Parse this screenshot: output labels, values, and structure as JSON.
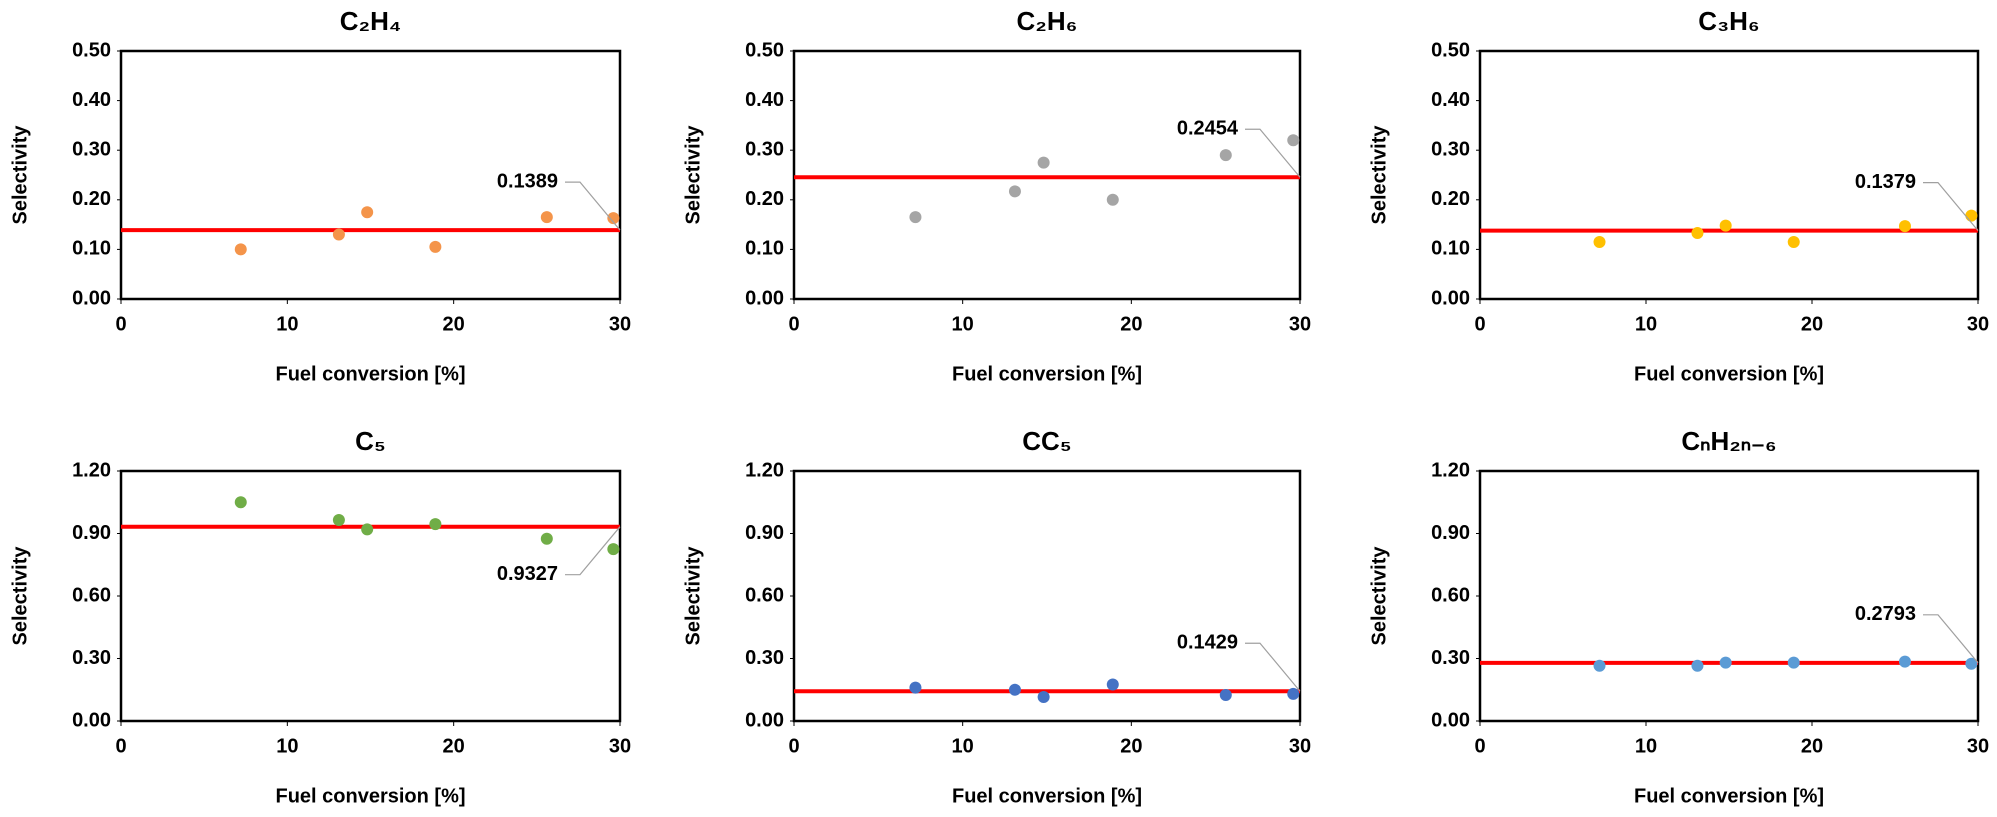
{
  "chart_data": [
    {
      "type": "scatter",
      "title": "C₂H₄",
      "xlabel": "Fuel conversion [%]",
      "ylabel": "Selectivity",
      "x": [
        7.2,
        13.1,
        14.8,
        18.9,
        25.6,
        29.6
      ],
      "values": [
        0.1,
        0.13,
        0.175,
        0.105,
        0.165,
        0.163
      ],
      "color": "#f4944a",
      "mean_line": 0.1389,
      "mean_line_color": "#ff0000",
      "xlim": [
        0,
        30
      ],
      "xticks": [
        0,
        10,
        20,
        30
      ],
      "ylim": [
        0,
        0.5
      ],
      "yticks": [
        {
          "value": 0,
          "label": "0.00"
        },
        {
          "value": 0.1,
          "label": "0.10"
        },
        {
          "value": 0.2,
          "label": "0.20"
        },
        {
          "value": 0.3,
          "label": "0.30"
        },
        {
          "value": 0.4,
          "label": "0.40"
        },
        {
          "value": 0.5,
          "label": "0.50"
        }
      ]
    },
    {
      "type": "scatter",
      "title": "C₂H₆",
      "xlabel": "Fuel conversion [%]",
      "ylabel": "Selectivity",
      "x": [
        7.2,
        13.1,
        14.8,
        18.9,
        25.6,
        29.6
      ],
      "values": [
        0.165,
        0.217,
        0.275,
        0.2,
        0.29,
        0.32
      ],
      "color": "#a5a5a5",
      "mean_line": 0.2454,
      "mean_line_color": "#ff0000",
      "xlim": [
        0,
        30
      ],
      "xticks": [
        0,
        10,
        20,
        30
      ],
      "ylim": [
        0,
        0.5
      ],
      "yticks": [
        {
          "value": 0,
          "label": "0.00"
        },
        {
          "value": 0.1,
          "label": "0.10"
        },
        {
          "value": 0.2,
          "label": "0.20"
        },
        {
          "value": 0.3,
          "label": "0.30"
        },
        {
          "value": 0.4,
          "label": "0.40"
        },
        {
          "value": 0.5,
          "label": "0.50"
        }
      ]
    },
    {
      "type": "scatter",
      "title": "C₃H₆",
      "xlabel": "Fuel conversion [%]",
      "ylabel": "Selectivity",
      "x": [
        7.2,
        13.1,
        14.8,
        18.9,
        25.6,
        29.6
      ],
      "values": [
        0.115,
        0.133,
        0.148,
        0.115,
        0.147,
        0.168
      ],
      "color": "#ffc000",
      "mean_line": 0.1379,
      "mean_line_color": "#ff0000",
      "xlim": [
        0,
        30
      ],
      "xticks": [
        0,
        10,
        20,
        30
      ],
      "ylim": [
        0,
        0.5
      ],
      "yticks": [
        {
          "value": 0,
          "label": "0.00"
        },
        {
          "value": 0.1,
          "label": "0.10"
        },
        {
          "value": 0.2,
          "label": "0.20"
        },
        {
          "value": 0.3,
          "label": "0.30"
        },
        {
          "value": 0.4,
          "label": "0.40"
        },
        {
          "value": 0.5,
          "label": "0.50"
        }
      ]
    },
    {
      "type": "scatter",
      "title": "C₅",
      "xlabel": "Fuel conversion [%]",
      "ylabel": "Selectivity",
      "x": [
        7.2,
        13.1,
        14.8,
        18.9,
        25.6,
        29.6
      ],
      "values": [
        1.05,
        0.965,
        0.92,
        0.945,
        0.875,
        0.825
      ],
      "color": "#70ad47",
      "mean_line": 0.9327,
      "mean_line_color": "#ff0000",
      "xlim": [
        0,
        30
      ],
      "xticks": [
        0,
        10,
        20,
        30
      ],
      "ylim": [
        0,
        1.2
      ],
      "yticks": [
        {
          "value": 0,
          "label": "0.00"
        },
        {
          "value": 0.3,
          "label": "0.30"
        },
        {
          "value": 0.6,
          "label": "0.60"
        },
        {
          "value": 0.9,
          "label": "0.90"
        },
        {
          "value": 1.2,
          "label": "1.20"
        }
      ]
    },
    {
      "type": "scatter",
      "title": "CC₅",
      "xlabel": "Fuel conversion [%]",
      "ylabel": "Selectivity",
      "x": [
        7.2,
        13.1,
        14.8,
        18.9,
        25.6,
        29.6
      ],
      "values": [
        0.16,
        0.15,
        0.115,
        0.175,
        0.125,
        0.13
      ],
      "color": "#4472c4",
      "mean_line": 0.1429,
      "mean_line_color": "#ff0000",
      "xlim": [
        0,
        30
      ],
      "xticks": [
        0,
        10,
        20,
        30
      ],
      "ylim": [
        0,
        1.2
      ],
      "yticks": [
        {
          "value": 0,
          "label": "0.00"
        },
        {
          "value": 0.3,
          "label": "0.30"
        },
        {
          "value": 0.6,
          "label": "0.60"
        },
        {
          "value": 0.9,
          "label": "0.90"
        },
        {
          "value": 1.2,
          "label": "1.20"
        }
      ]
    },
    {
      "type": "scatter",
      "title": "CₙH₂ₙ₋₆",
      "xlabel": "Fuel conversion [%]",
      "ylabel": "Selectivity",
      "x": [
        7.2,
        13.1,
        14.8,
        18.9,
        25.6,
        29.6
      ],
      "values": [
        0.265,
        0.265,
        0.28,
        0.28,
        0.285,
        0.275
      ],
      "color": "#5b9bd5",
      "mean_line": 0.2793,
      "mean_line_color": "#ff0000",
      "xlim": [
        0,
        30
      ],
      "xticks": [
        0,
        10,
        20,
        30
      ],
      "ylim": [
        0,
        1.2
      ],
      "yticks": [
        {
          "value": 0,
          "label": "0.00"
        },
        {
          "value": 0.3,
          "label": "0.30"
        },
        {
          "value": 0.6,
          "label": "0.60"
        },
        {
          "value": 0.9,
          "label": "0.90"
        },
        {
          "value": 1.2,
          "label": "1.20"
        }
      ]
    }
  ]
}
